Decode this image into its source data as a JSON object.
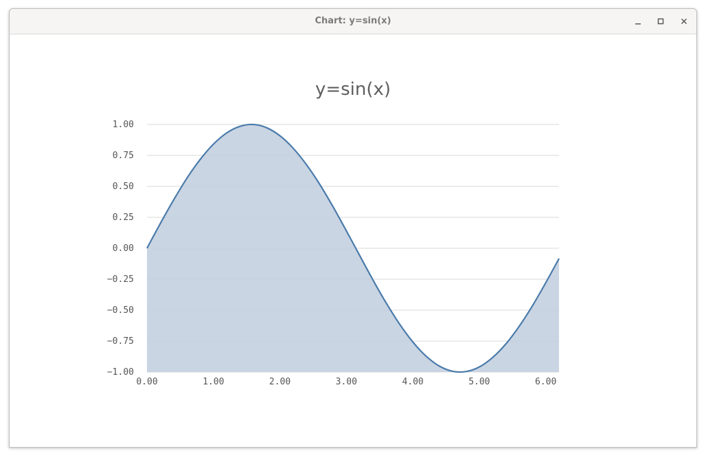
{
  "window": {
    "title": "Chart: y=sin(x)",
    "controls": {
      "minimize_icon": "minimize-icon",
      "maximize_icon": "maximize-icon",
      "close_icon": "close-icon"
    }
  },
  "chart_data": {
    "type": "area",
    "title": "y=sin(x)",
    "xlabel": "",
    "ylabel": "",
    "xlim": [
      0,
      6.2
    ],
    "ylim": [
      -1,
      1
    ],
    "x_ticks": [
      "0.00",
      "1.00",
      "2.00",
      "3.00",
      "4.00",
      "5.00",
      "6.00"
    ],
    "y_ticks": [
      "1.00",
      "0.75",
      "0.50",
      "0.25",
      "0.00",
      "−0.25",
      "−0.50",
      "−0.75",
      "−1.00"
    ],
    "grid": true,
    "legend": "none",
    "x": [
      0.0,
      0.2,
      0.4,
      0.6,
      0.8,
      1.0,
      1.2,
      1.4,
      1.6,
      1.8,
      2.0,
      2.2,
      2.4,
      2.6,
      2.8,
      3.0,
      3.2,
      3.4,
      3.6,
      3.8,
      4.0,
      4.2,
      4.4,
      4.6,
      4.8,
      5.0,
      5.2,
      5.4,
      5.6,
      5.8,
      6.0,
      6.2
    ],
    "series": [
      {
        "values": [
          0.0,
          0.199,
          0.389,
          0.565,
          0.717,
          0.841,
          0.932,
          0.985,
          1.0,
          0.974,
          0.909,
          0.808,
          0.675,
          0.516,
          0.335,
          0.141,
          -0.058,
          -0.256,
          -0.443,
          -0.612,
          -0.757,
          -0.872,
          -0.952,
          -0.994,
          -0.996,
          -0.959,
          -0.883,
          -0.773,
          -0.631,
          -0.465,
          -0.279,
          -0.083
        ]
      }
    ],
    "colors": {
      "line": "#4a7bab",
      "fill": "#c1cede",
      "grid": "#d9d9d9",
      "tick_text": "#555555",
      "title_text": "#5f5f5f"
    }
  }
}
